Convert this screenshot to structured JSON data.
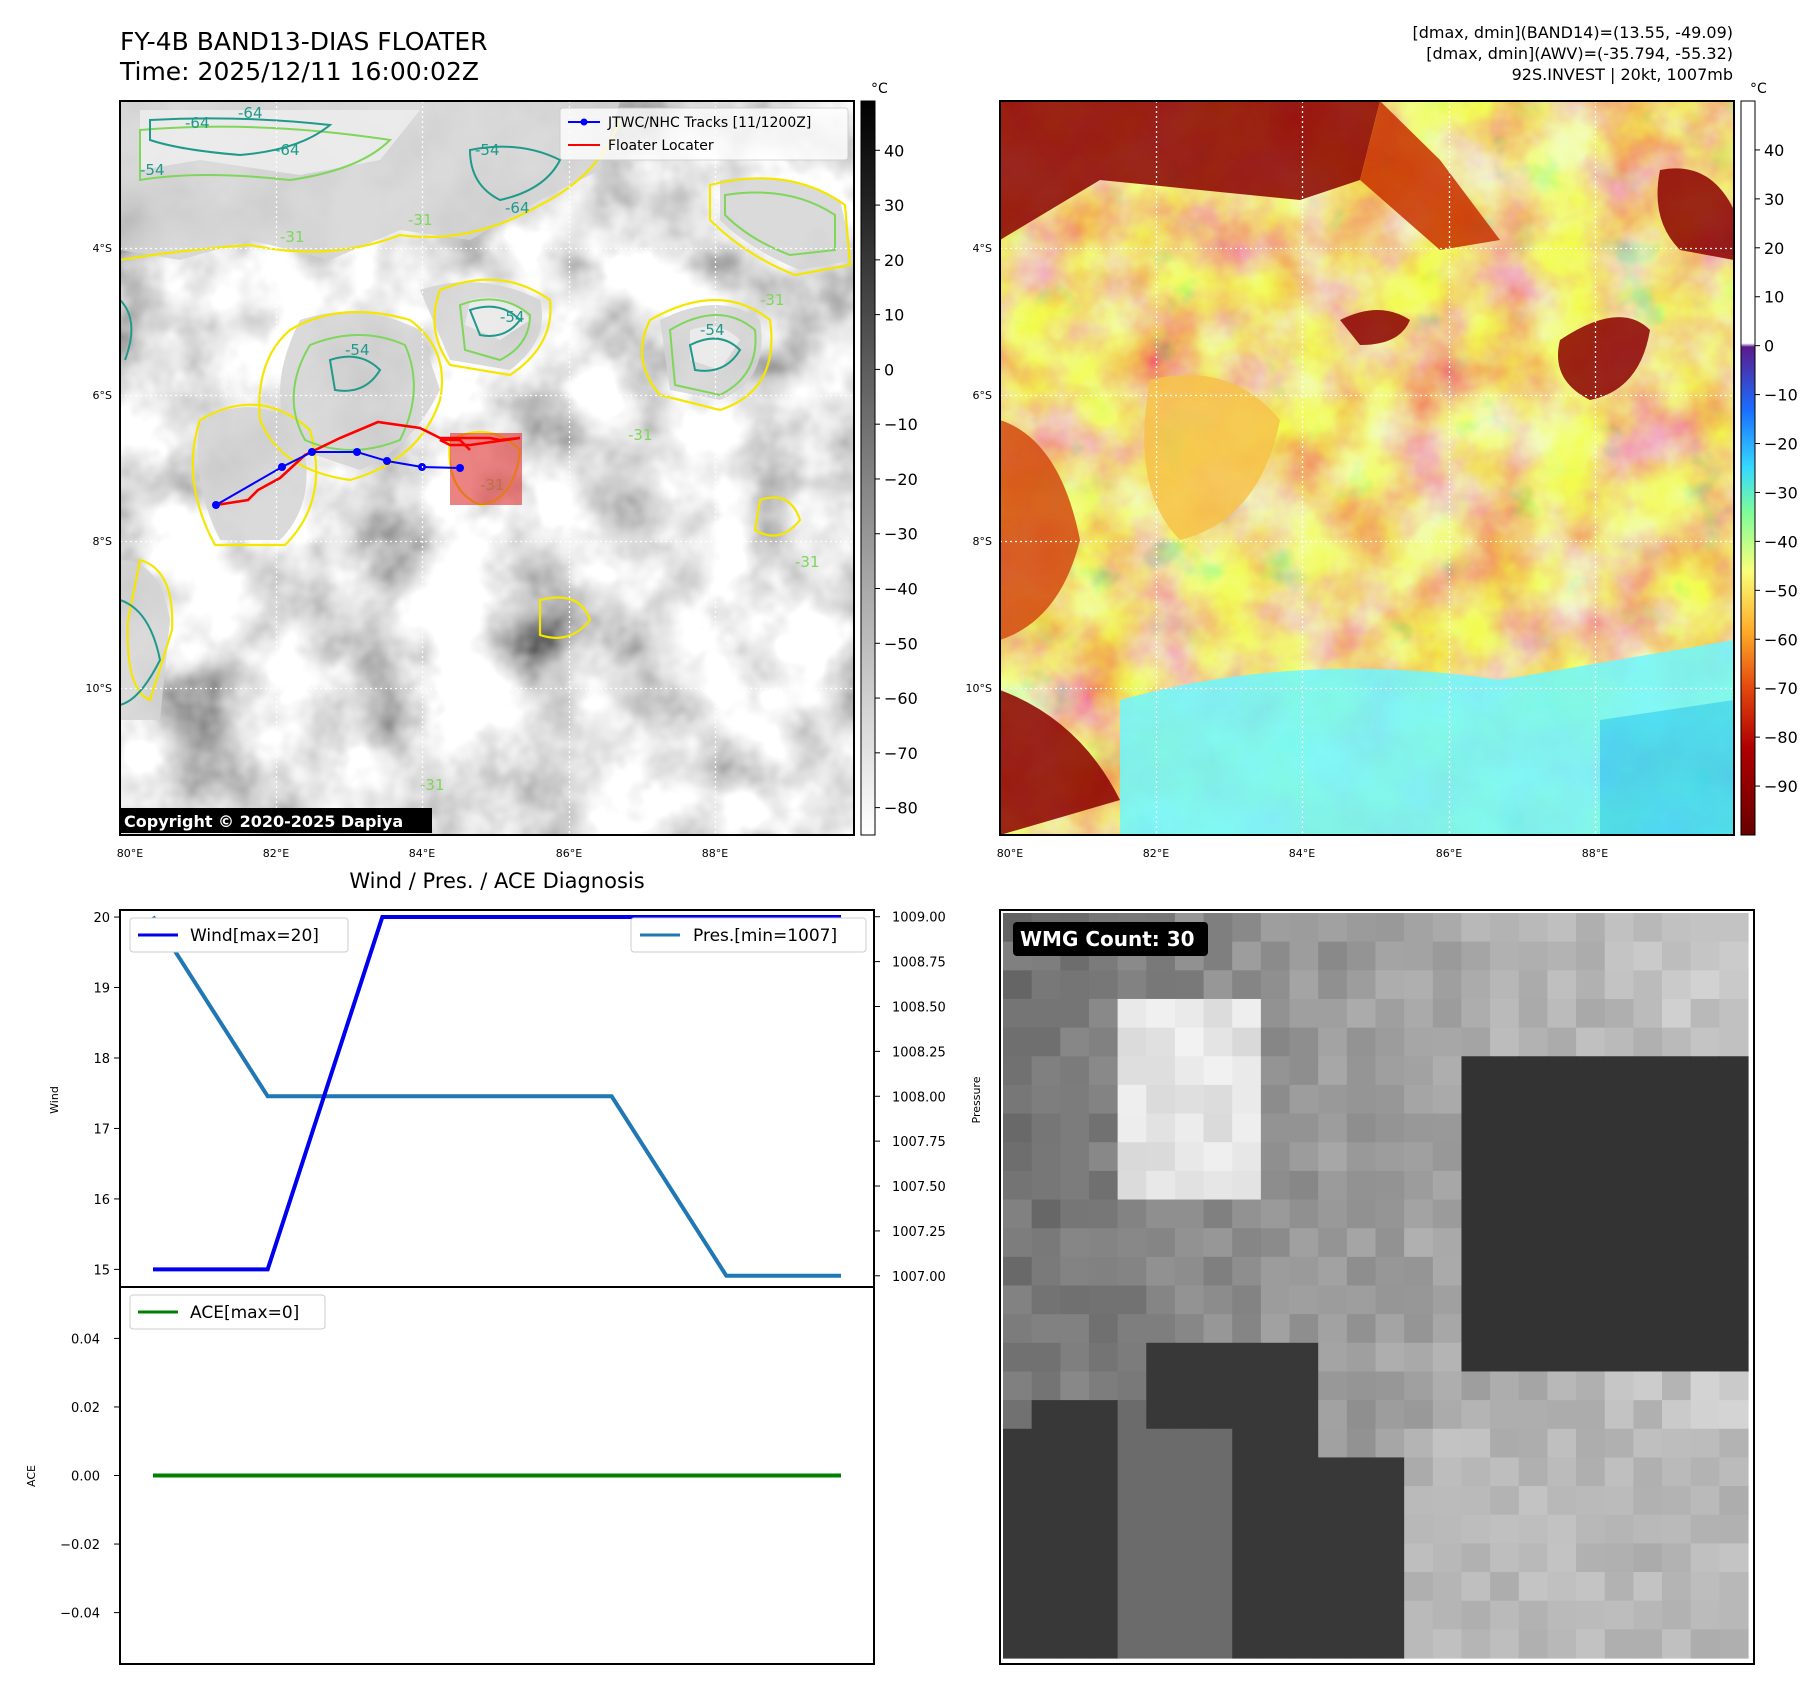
{
  "header": {
    "title": "FY-4B BAND13-DIAS FLOATER",
    "time": "Time: 2025/12/11 16:00:02Z",
    "info_line1": "[dmax, dmin](BAND14)=(13.55, -49.09)",
    "info_line2": "[dmax, dmin](AWV)=(-35.794, -55.32)",
    "info_line3": "92S.INVEST | 20kt, 1007mb"
  },
  "map_axes": {
    "lat_labels": [
      "4°S",
      "6°S",
      "8°S",
      "10°S"
    ],
    "lon_labels": [
      "80°E",
      "82°E",
      "84°E",
      "86°E",
      "88°E"
    ]
  },
  "ir_panel": {
    "legend": [
      "JTWC/NHC Tracks [11/1200Z]",
      "Floater Locater"
    ],
    "copyright": "Copyright © 2020-2025 Dapiya",
    "contour_labels": [
      "-64",
      "-54",
      "-31"
    ],
    "colorbar_unit": "°C",
    "colorbar_ticks": [
      "40",
      "30",
      "20",
      "10",
      "0",
      "−10",
      "−20",
      "−30",
      "−40",
      "−50",
      "−60",
      "−70",
      "−80"
    ],
    "colorbar_range": [
      -85,
      49
    ]
  },
  "wv_panel": {
    "colorbar_unit": "°C",
    "colorbar_ticks": [
      "40",
      "30",
      "20",
      "10",
      "0",
      "−10",
      "−20",
      "−30",
      "−40",
      "−50",
      "−60",
      "−70",
      "−80",
      "−90"
    ],
    "colorbar_range": [
      -100,
      50
    ]
  },
  "wmg_panel": {
    "label": "WMG Count: 30"
  },
  "colors": {
    "wind": "#0000ee",
    "pressure": "#1f77b4",
    "ace": "#008000",
    "track": "#0000ff",
    "floater": "#ff0000",
    "contour_yellow": "#f5e600",
    "contour_green": "#7fd65a",
    "contour_teal": "#1f9a8a"
  },
  "chart_data": [
    {
      "type": "line",
      "title": "Wind / Pres. / ACE Diagnosis",
      "ylabel": "Wind",
      "ylabel_right": "Pressure",
      "x": [
        0,
        1,
        2,
        3,
        4,
        5,
        6
      ],
      "ylim": [
        14.75,
        20.1
      ],
      "ylim_right": [
        1006.9375,
        1009.0375
      ],
      "y_ticks": [
        "15",
        "16",
        "17",
        "18",
        "19",
        "20"
      ],
      "y_right_ticks": [
        "1007.00",
        "1007.25",
        "1007.50",
        "1007.75",
        "1008.00",
        "1008.25",
        "1008.50",
        "1008.75",
        "1009.00"
      ],
      "series": [
        {
          "name": "Wind[max=20]",
          "axis": "left",
          "values": [
            15,
            15,
            20,
            20,
            20,
            20,
            20
          ]
        },
        {
          "name": "Pres.[min=1007]",
          "axis": "right",
          "values": [
            1009,
            1008,
            1008,
            1008,
            1008,
            1007,
            1007
          ]
        }
      ],
      "legend": [
        "top-left",
        "top-right"
      ]
    },
    {
      "type": "line",
      "ylabel": "ACE",
      "x": [
        0,
        1,
        2,
        3,
        4,
        5,
        6
      ],
      "ylim": [
        -0.055,
        0.055
      ],
      "y_ticks": [
        "0.04",
        "0.02",
        "0.00",
        "−0.02",
        "−0.04"
      ],
      "series": [
        {
          "name": "ACE[max=0]",
          "values": [
            0,
            0,
            0,
            0,
            0,
            0,
            0
          ]
        }
      ],
      "legend": "top-left"
    }
  ]
}
